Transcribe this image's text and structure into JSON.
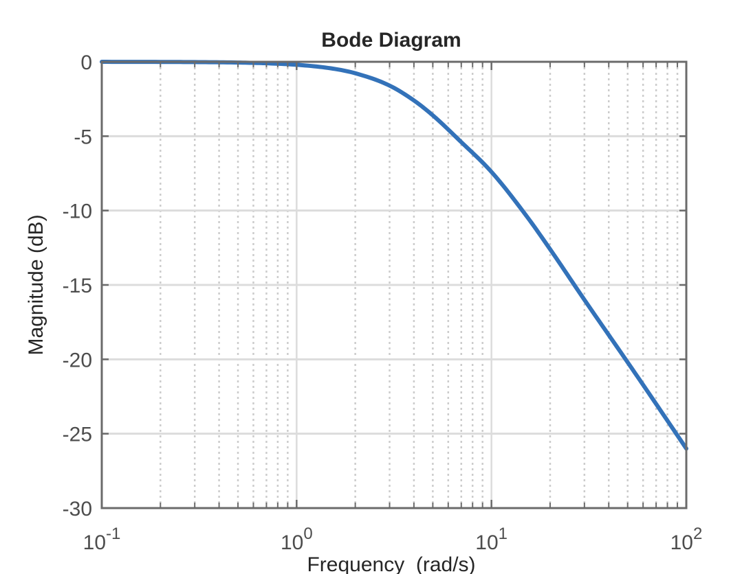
{
  "chart_data": {
    "type": "line",
    "title": "Bode Diagram",
    "xlabel": "Frequency  (rad/s)",
    "ylabel": "Magnitude (dB)",
    "x_scale": "log",
    "xlim": [
      0.1,
      100
    ],
    "ylim": [
      -30,
      0
    ],
    "x_ticks": [
      {
        "value": 0.1,
        "base": "10",
        "exp": "-1"
      },
      {
        "value": 1,
        "base": "10",
        "exp": "0"
      },
      {
        "value": 10,
        "base": "10",
        "exp": "1"
      },
      {
        "value": 100,
        "base": "10",
        "exp": "2"
      }
    ],
    "y_ticks": [
      0,
      -5,
      -10,
      -15,
      -20,
      -25,
      -30
    ],
    "grid": true,
    "minor_grid": true,
    "series": [
      {
        "color": "#3372b9",
        "x": [
          0.1,
          0.2,
          0.3,
          0.5,
          0.7,
          1,
          1.5,
          2,
          3,
          4,
          5,
          7,
          10,
          15,
          20,
          30,
          50,
          70,
          100
        ],
        "y": [
          -0.002,
          -0.009,
          -0.02,
          -0.05,
          -0.1,
          -0.2,
          -0.44,
          -0.77,
          -1.6,
          -2.6,
          -3.6,
          -5.4,
          -7.4,
          -10.3,
          -12.6,
          -16.0,
          -20.2,
          -23.0,
          -26.0
        ]
      }
    ]
  }
}
